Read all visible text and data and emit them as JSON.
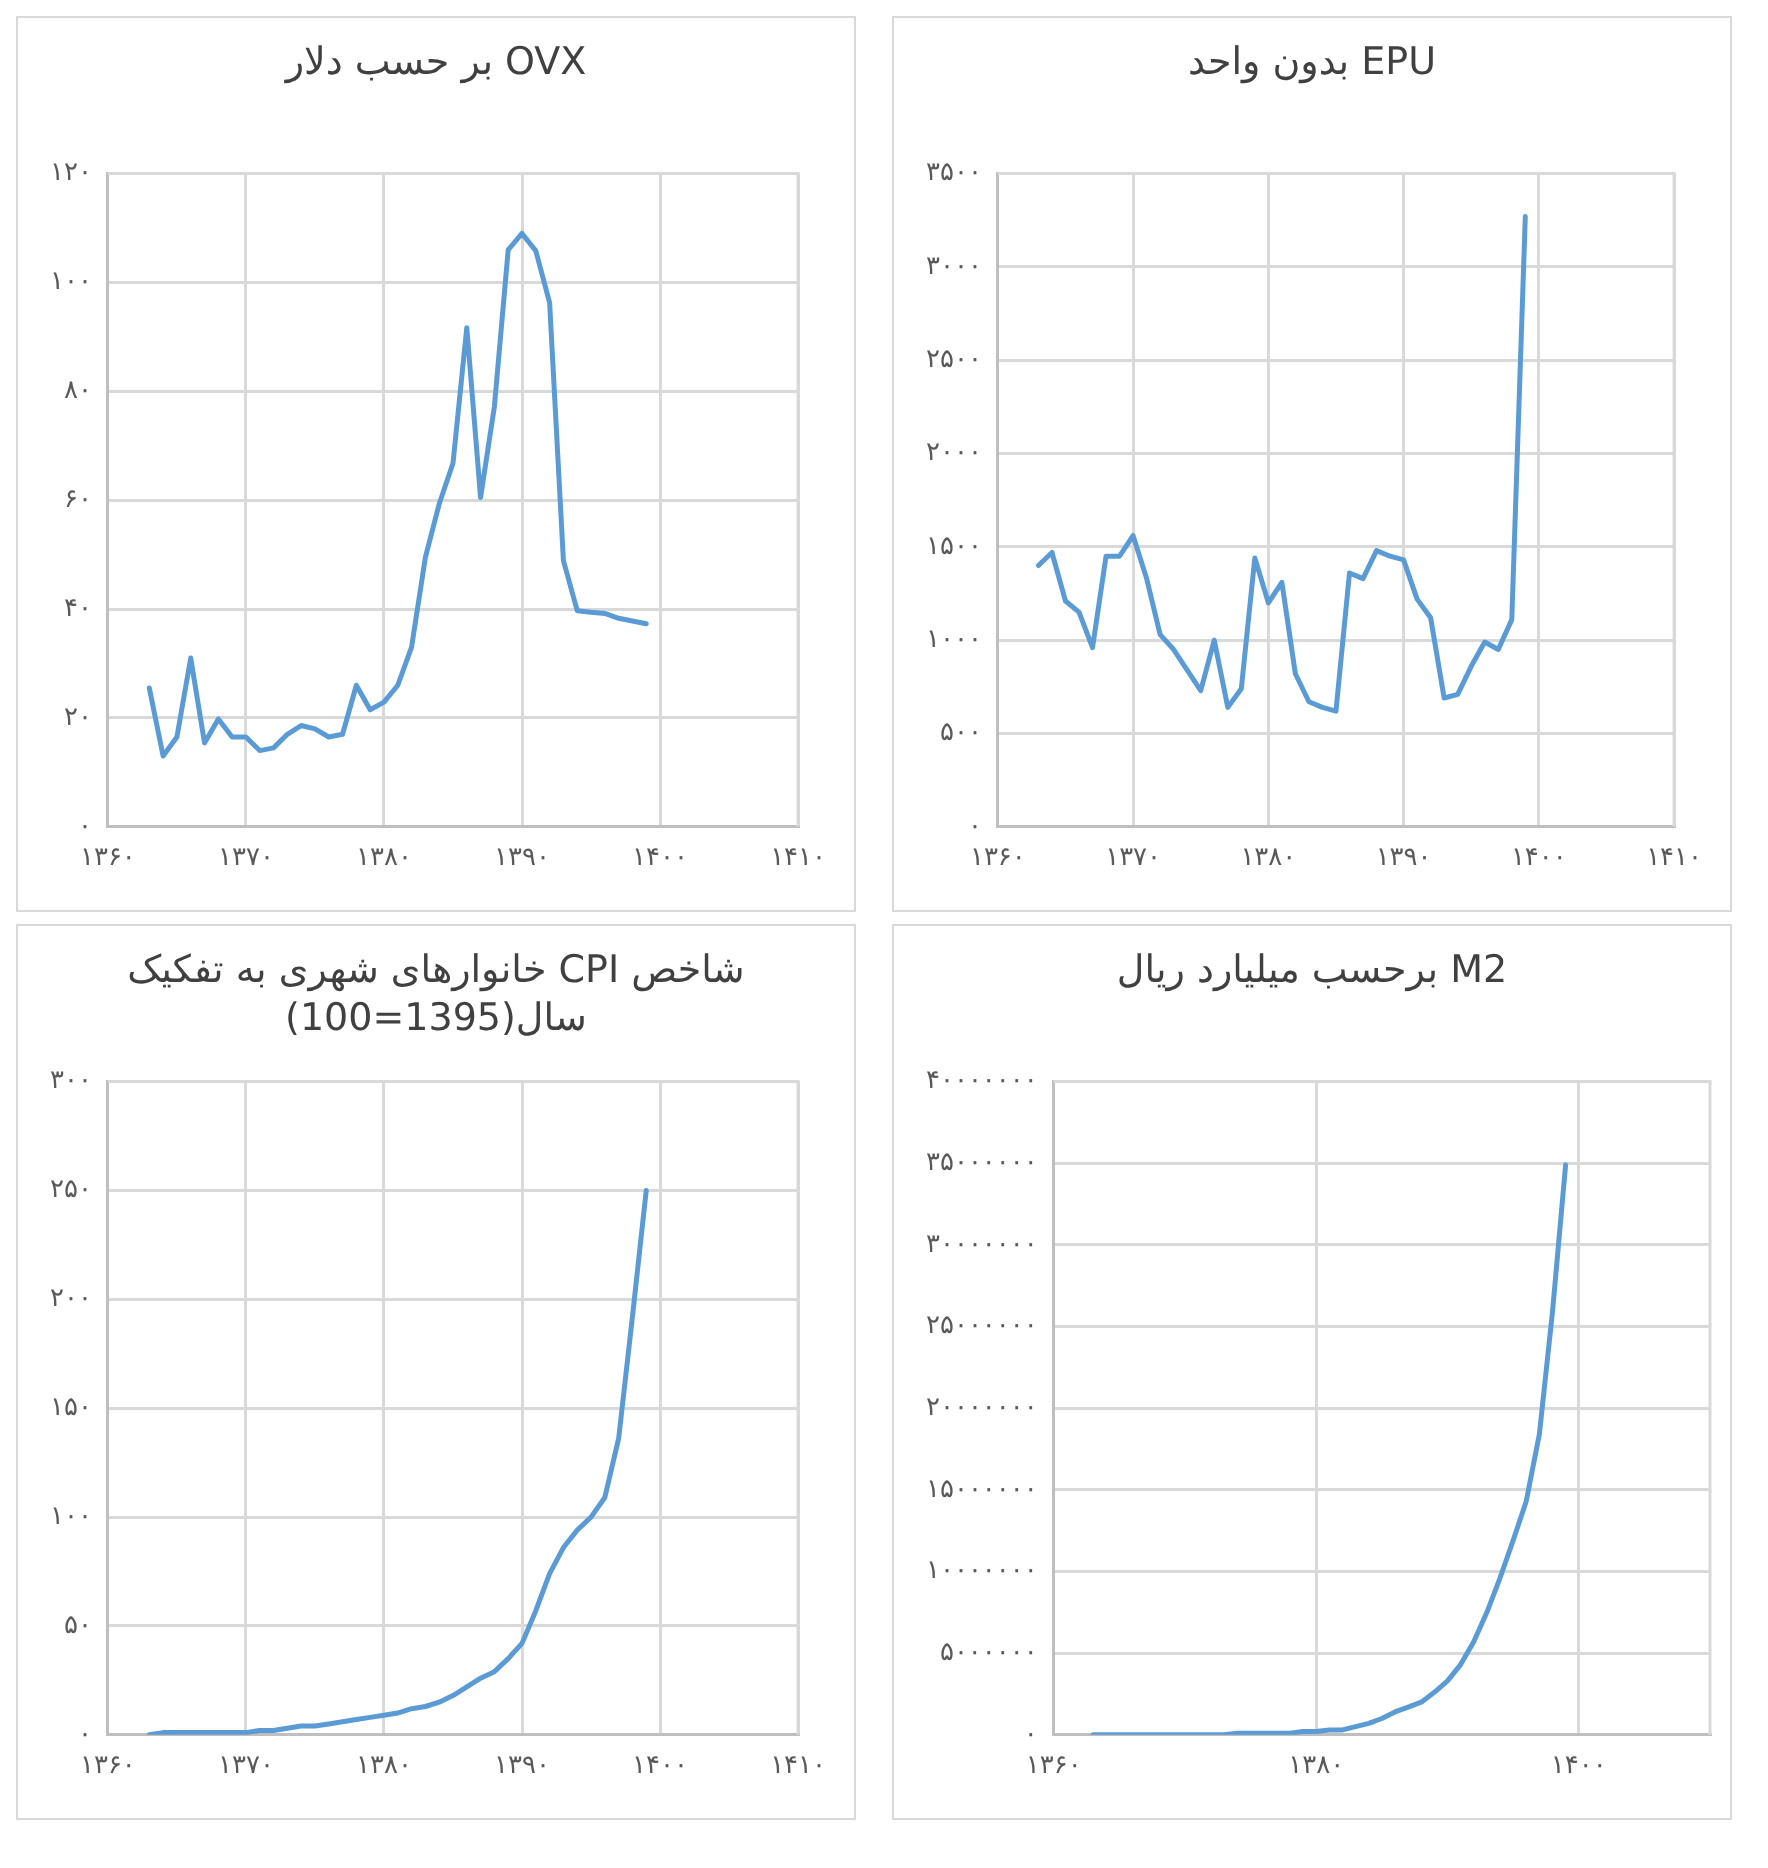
{
  "chart_data": [
    {
      "type": "line",
      "title": "OVX بر حسب دلار",
      "color": "#5b9bd5",
      "marker": "none",
      "grid": true,
      "x": [
        1363,
        1364,
        1365,
        1366,
        1367,
        1368,
        1369,
        1370,
        1371,
        1372,
        1373,
        1374,
        1375,
        1376,
        1377,
        1378,
        1379,
        1380,
        1381,
        1382,
        1383,
        1384,
        1385,
        1386,
        1387,
        1388,
        1389,
        1390,
        1391,
        1392,
        1393,
        1394,
        1395,
        1396,
        1397,
        1398,
        1399
      ],
      "values": [
        25.5,
        13,
        16.5,
        31,
        15.4,
        19.8,
        16.5,
        16.5,
        14,
        14.5,
        17,
        18.6,
        18,
        16.5,
        17,
        26,
        21.5,
        22.9,
        26,
        33,
        49.5,
        59.3,
        66.8,
        91.7,
        60.5,
        77.2,
        106,
        109,
        105.8,
        96.3,
        48.9,
        39.7,
        39.4,
        39.2,
        38.3,
        37.8,
        37.3
      ],
      "xlim": [
        1360,
        1410
      ],
      "xticks": [
        {
          "value": 1360,
          "label": "۱۳۶۰"
        },
        {
          "value": 1370,
          "label": "۱۳۷۰"
        },
        {
          "value": 1380,
          "label": "۱۳۸۰"
        },
        {
          "value": 1390,
          "label": "۱۳۹۰"
        },
        {
          "value": 1400,
          "label": "۱۴۰۰"
        },
        {
          "value": 1410,
          "label": "۱۴۱۰"
        }
      ],
      "ylim": [
        0,
        120
      ],
      "yticks": [
        {
          "value": 0,
          "label": "۰"
        },
        {
          "value": 20,
          "label": "۲۰"
        },
        {
          "value": 40,
          "label": "۴۰"
        },
        {
          "value": 60,
          "label": "۶۰"
        },
        {
          "value": 80,
          "label": "۸۰"
        },
        {
          "value": 100,
          "label": "۱۰۰"
        },
        {
          "value": 120,
          "label": "۱۲۰"
        }
      ]
    },
    {
      "type": "line",
      "title": "EPU بدون واحد",
      "color": "#5b9bd5",
      "marker": "none",
      "grid": true,
      "x": [
        1363,
        1364,
        1365,
        1366,
        1367,
        1368,
        1369,
        1370,
        1371,
        1372,
        1373,
        1374,
        1375,
        1376,
        1377,
        1378,
        1379,
        1380,
        1381,
        1382,
        1383,
        1384,
        1385,
        1386,
        1387,
        1388,
        1389,
        1390,
        1391,
        1392,
        1393,
        1394,
        1395,
        1396,
        1397,
        1398,
        1399
      ],
      "values": [
        1400,
        1470,
        1210,
        1150,
        960,
        1450,
        1450,
        1560,
        1330,
        1030,
        950,
        840,
        730,
        1000,
        640,
        740,
        1440,
        1200,
        1310,
        820,
        670,
        640,
        620,
        1360,
        1330,
        1480,
        1450,
        1430,
        1220,
        1120,
        690,
        710,
        860,
        990,
        950,
        1110,
        3270
      ],
      "xlim": [
        1360,
        1410
      ],
      "xticks": [
        {
          "value": 1360,
          "label": "۱۳۶۰"
        },
        {
          "value": 1370,
          "label": "۱۳۷۰"
        },
        {
          "value": 1380,
          "label": "۱۳۸۰"
        },
        {
          "value": 1390,
          "label": "۱۳۹۰"
        },
        {
          "value": 1400,
          "label": "۱۴۰۰"
        },
        {
          "value": 1410,
          "label": "۱۴۱۰"
        }
      ],
      "ylim": [
        0,
        3500
      ],
      "yticks": [
        {
          "value": 0,
          "label": "۰"
        },
        {
          "value": 500,
          "label": "۵۰۰"
        },
        {
          "value": 1000,
          "label": "۱۰۰۰"
        },
        {
          "value": 1500,
          "label": "۱۵۰۰"
        },
        {
          "value": 2000,
          "label": "۲۰۰۰"
        },
        {
          "value": 2500,
          "label": "۲۵۰۰"
        },
        {
          "value": 3000,
          "label": "۳۰۰۰"
        },
        {
          "value": 3500,
          "label": "۳۵۰۰"
        }
      ]
    },
    {
      "type": "line",
      "title": "شاخص CPI خانوارهای شهری به تفکیک سال(1395=100)",
      "color": "#5b9bd5",
      "marker": "none",
      "grid": true,
      "x": [
        1363,
        1364,
        1365,
        1366,
        1367,
        1368,
        1369,
        1370,
        1371,
        1372,
        1373,
        1374,
        1375,
        1376,
        1377,
        1378,
        1379,
        1380,
        1381,
        1382,
        1383,
        1384,
        1385,
        1386,
        1387,
        1388,
        1389,
        1390,
        1391,
        1392,
        1393,
        1394,
        1395,
        1396,
        1397,
        1398,
        1399
      ],
      "values": [
        0,
        1,
        1,
        1,
        1,
        1,
        1,
        1,
        2,
        2,
        3,
        4,
        4,
        5,
        6,
        7,
        8,
        9,
        10,
        12,
        13,
        15,
        18,
        22,
        26,
        29,
        35,
        42,
        57,
        74,
        86,
        94,
        100,
        109,
        136,
        192,
        250
      ],
      "xlim": [
        1360,
        1410
      ],
      "xticks": [
        {
          "value": 1360,
          "label": "۱۳۶۰"
        },
        {
          "value": 1370,
          "label": "۱۳۷۰"
        },
        {
          "value": 1380,
          "label": "۱۳۸۰"
        },
        {
          "value": 1390,
          "label": "۱۳۹۰"
        },
        {
          "value": 1400,
          "label": "۱۴۰۰"
        },
        {
          "value": 1410,
          "label": "۱۴۱۰"
        }
      ],
      "ylim": [
        0,
        300
      ],
      "yticks": [
        {
          "value": 0,
          "label": "۰"
        },
        {
          "value": 50,
          "label": "۵۰"
        },
        {
          "value": 100,
          "label": "۱۰۰"
        },
        {
          "value": 150,
          "label": "۱۵۰"
        },
        {
          "value": 200,
          "label": "۲۰۰"
        },
        {
          "value": 250,
          "label": "۲۵۰"
        },
        {
          "value": 300,
          "label": "۳۰۰"
        }
      ]
    },
    {
      "type": "line",
      "title": "M2 برحسب میلیارد ریال",
      "color": "#5b9bd5",
      "marker": "none",
      "grid": true,
      "x": [
        1363,
        1364,
        1365,
        1366,
        1367,
        1368,
        1369,
        1370,
        1371,
        1372,
        1373,
        1374,
        1375,
        1376,
        1377,
        1378,
        1379,
        1380,
        1381,
        1382,
        1383,
        1384,
        1385,
        1386,
        1387,
        1388,
        1389,
        1390,
        1391,
        1392,
        1393,
        1394,
        1395,
        1396,
        1397,
        1398,
        1399
      ],
      "values": [
        0,
        0,
        0,
        0,
        0,
        0,
        0,
        0,
        0,
        0,
        0,
        100000,
        100000,
        100000,
        100000,
        100000,
        200000,
        200000,
        300000,
        300000,
        500000,
        700000,
        1000000,
        1400000,
        1700000,
        2000000,
        2600000,
        3300000,
        4300000,
        5700000,
        7500000,
        9600000,
        11900000,
        14300000,
        18400000,
        25900000,
        34900000
      ],
      "xlim": [
        1360,
        1410
      ],
      "xticks": [
        {
          "value": 1360,
          "label": "۱۳۶۰"
        },
        {
          "value": 1380,
          "label": "۱۳۸۰"
        },
        {
          "value": 1400,
          "label": "۱۴۰۰"
        }
      ],
      "ylim": [
        0,
        40000000
      ],
      "yticks": [
        {
          "value": 0,
          "label": "۰"
        },
        {
          "value": 5000000,
          "label": "۵۰۰۰۰۰۰"
        },
        {
          "value": 10000000,
          "label": "۱۰۰۰۰۰۰۰"
        },
        {
          "value": 15000000,
          "label": "۱۵۰۰۰۰۰۰"
        },
        {
          "value": 20000000,
          "label": "۲۰۰۰۰۰۰۰"
        },
        {
          "value": 25000000,
          "label": "۲۵۰۰۰۰۰۰"
        },
        {
          "value": 30000000,
          "label": "۳۰۰۰۰۰۰۰"
        },
        {
          "value": 35000000,
          "label": "۳۵۰۰۰۰۰۰"
        },
        {
          "value": 40000000,
          "label": "۴۰۰۰۰۰۰۰"
        }
      ]
    }
  ]
}
